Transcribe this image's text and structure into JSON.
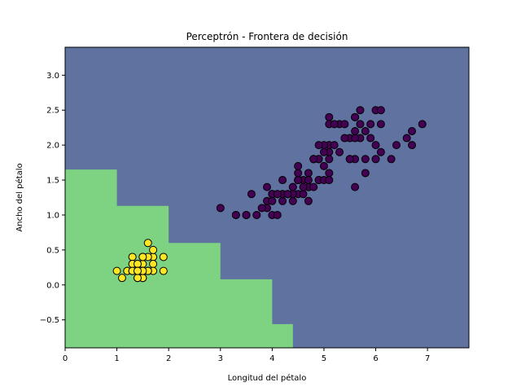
{
  "chart_data": {
    "type": "scatter",
    "title": "Perceptrón - Frontera de decisión",
    "xlabel": "Longitud del pétalo",
    "ylabel": "Ancho del pétalo",
    "xlim": [
      0,
      7.8
    ],
    "ylim": [
      -0.9,
      3.4
    ],
    "xticks": [
      0,
      1,
      2,
      3,
      4,
      5,
      6,
      7
    ],
    "yticks": [
      -0.5,
      0.0,
      0.5,
      1.0,
      1.5,
      2.0,
      2.5,
      3.0
    ],
    "xtick_labels": [
      "0",
      "1",
      "2",
      "3",
      "4",
      "5",
      "6",
      "7"
    ],
    "ytick_labels": [
      "−0.5",
      "0.0",
      "0.5",
      "1.0",
      "1.5",
      "2.0",
      "2.5",
      "3.0"
    ],
    "grid": false,
    "legend": "none",
    "colors": {
      "region_upper": "#5f72a0",
      "region_lower": "#7dd381",
      "class_0_points": "#fde725",
      "class_1_points": "#440154",
      "point_edge": "#000000"
    },
    "decision_boundary": [
      [
        0.0,
        1.65
      ],
      [
        1.0,
        1.13
      ],
      [
        2.0,
        0.6
      ],
      [
        3.0,
        0.08
      ],
      [
        4.0,
        -0.56
      ],
      [
        4.4,
        -0.9
      ]
    ],
    "series": [
      {
        "class": 0,
        "points": [
          [
            1.4,
            0.2
          ],
          [
            1.4,
            0.2
          ],
          [
            1.3,
            0.2
          ],
          [
            1.5,
            0.2
          ],
          [
            1.4,
            0.2
          ],
          [
            1.7,
            0.4
          ],
          [
            1.4,
            0.3
          ],
          [
            1.5,
            0.2
          ],
          [
            1.4,
            0.2
          ],
          [
            1.5,
            0.1
          ],
          [
            1.5,
            0.2
          ],
          [
            1.6,
            0.2
          ],
          [
            1.4,
            0.1
          ],
          [
            1.1,
            0.1
          ],
          [
            1.2,
            0.2
          ],
          [
            1.5,
            0.4
          ],
          [
            1.3,
            0.4
          ],
          [
            1.4,
            0.3
          ],
          [
            1.7,
            0.3
          ],
          [
            1.5,
            0.3
          ],
          [
            1.7,
            0.2
          ],
          [
            1.5,
            0.4
          ],
          [
            1.0,
            0.2
          ],
          [
            1.7,
            0.5
          ],
          [
            1.9,
            0.2
          ],
          [
            1.6,
            0.2
          ],
          [
            1.6,
            0.4
          ],
          [
            1.5,
            0.2
          ],
          [
            1.4,
            0.2
          ],
          [
            1.6,
            0.2
          ],
          [
            1.6,
            0.2
          ],
          [
            1.5,
            0.4
          ],
          [
            1.5,
            0.1
          ],
          [
            1.4,
            0.2
          ],
          [
            1.5,
            0.2
          ],
          [
            1.2,
            0.2
          ],
          [
            1.3,
            0.2
          ],
          [
            1.4,
            0.1
          ],
          [
            1.3,
            0.2
          ],
          [
            1.5,
            0.2
          ],
          [
            1.3,
            0.3
          ],
          [
            1.3,
            0.3
          ],
          [
            1.3,
            0.2
          ],
          [
            1.6,
            0.6
          ],
          [
            1.9,
            0.4
          ],
          [
            1.4,
            0.3
          ],
          [
            1.6,
            0.2
          ],
          [
            1.4,
            0.2
          ],
          [
            1.5,
            0.2
          ],
          [
            1.4,
            0.2
          ]
        ]
      },
      {
        "class": 1,
        "points": [
          [
            4.7,
            1.4
          ],
          [
            4.5,
            1.5
          ],
          [
            4.9,
            1.5
          ],
          [
            4.0,
            1.3
          ],
          [
            4.6,
            1.5
          ],
          [
            4.5,
            1.3
          ],
          [
            4.7,
            1.6
          ],
          [
            3.3,
            1.0
          ],
          [
            4.6,
            1.3
          ],
          [
            3.9,
            1.4
          ],
          [
            3.5,
            1.0
          ],
          [
            4.2,
            1.5
          ],
          [
            4.0,
            1.0
          ],
          [
            4.7,
            1.4
          ],
          [
            3.6,
            1.3
          ],
          [
            4.4,
            1.4
          ],
          [
            4.5,
            1.5
          ],
          [
            4.1,
            1.0
          ],
          [
            4.5,
            1.5
          ],
          [
            3.9,
            1.1
          ],
          [
            4.8,
            1.8
          ],
          [
            4.0,
            1.3
          ],
          [
            4.9,
            1.5
          ],
          [
            4.7,
            1.2
          ],
          [
            4.3,
            1.3
          ],
          [
            4.4,
            1.4
          ],
          [
            4.8,
            1.4
          ],
          [
            5.0,
            1.7
          ],
          [
            4.5,
            1.5
          ],
          [
            3.5,
            1.0
          ],
          [
            3.8,
            1.1
          ],
          [
            3.7,
            1.0
          ],
          [
            3.9,
            1.2
          ],
          [
            5.1,
            1.6
          ],
          [
            4.5,
            1.5
          ],
          [
            4.5,
            1.6
          ],
          [
            4.7,
            1.5
          ],
          [
            4.4,
            1.3
          ],
          [
            4.1,
            1.3
          ],
          [
            4.0,
            1.3
          ],
          [
            4.4,
            1.2
          ],
          [
            4.6,
            1.4
          ],
          [
            4.0,
            1.2
          ],
          [
            3.3,
            1.0
          ],
          [
            4.2,
            1.3
          ],
          [
            4.2,
            1.2
          ],
          [
            4.2,
            1.3
          ],
          [
            4.3,
            1.3
          ],
          [
            3.0,
            1.1
          ],
          [
            4.1,
            1.3
          ],
          [
            6.0,
            2.5
          ],
          [
            5.1,
            1.9
          ],
          [
            5.9,
            2.1
          ],
          [
            5.6,
            1.8
          ],
          [
            5.8,
            2.2
          ],
          [
            6.6,
            2.1
          ],
          [
            4.5,
            1.7
          ],
          [
            6.3,
            1.8
          ],
          [
            5.8,
            1.8
          ],
          [
            6.1,
            2.5
          ],
          [
            5.1,
            2.0
          ],
          [
            5.3,
            1.9
          ],
          [
            5.5,
            2.1
          ],
          [
            5.0,
            2.0
          ],
          [
            5.1,
            2.4
          ],
          [
            5.3,
            2.3
          ],
          [
            5.5,
            1.8
          ],
          [
            6.7,
            2.2
          ],
          [
            6.9,
            2.3
          ],
          [
            5.0,
            1.5
          ],
          [
            5.7,
            2.3
          ],
          [
            4.9,
            2.0
          ],
          [
            6.7,
            2.0
          ],
          [
            4.9,
            1.8
          ],
          [
            5.7,
            2.1
          ],
          [
            6.0,
            1.8
          ],
          [
            4.8,
            1.8
          ],
          [
            4.9,
            1.8
          ],
          [
            5.6,
            2.1
          ],
          [
            5.8,
            1.6
          ],
          [
            6.1,
            1.9
          ],
          [
            6.4,
            2.0
          ],
          [
            5.6,
            2.2
          ],
          [
            5.1,
            1.5
          ],
          [
            5.6,
            1.4
          ],
          [
            6.1,
            2.3
          ],
          [
            5.6,
            2.4
          ],
          [
            5.5,
            1.8
          ],
          [
            4.8,
            1.8
          ],
          [
            5.4,
            2.1
          ],
          [
            5.6,
            2.4
          ],
          [
            5.1,
            2.3
          ],
          [
            5.9,
            2.3
          ],
          [
            5.7,
            2.5
          ],
          [
            5.2,
            2.3
          ],
          [
            5.0,
            1.9
          ],
          [
            5.2,
            2.0
          ],
          [
            5.4,
            2.3
          ],
          [
            5.1,
            1.8
          ],
          [
            6.0,
            2.0
          ]
        ]
      }
    ]
  }
}
